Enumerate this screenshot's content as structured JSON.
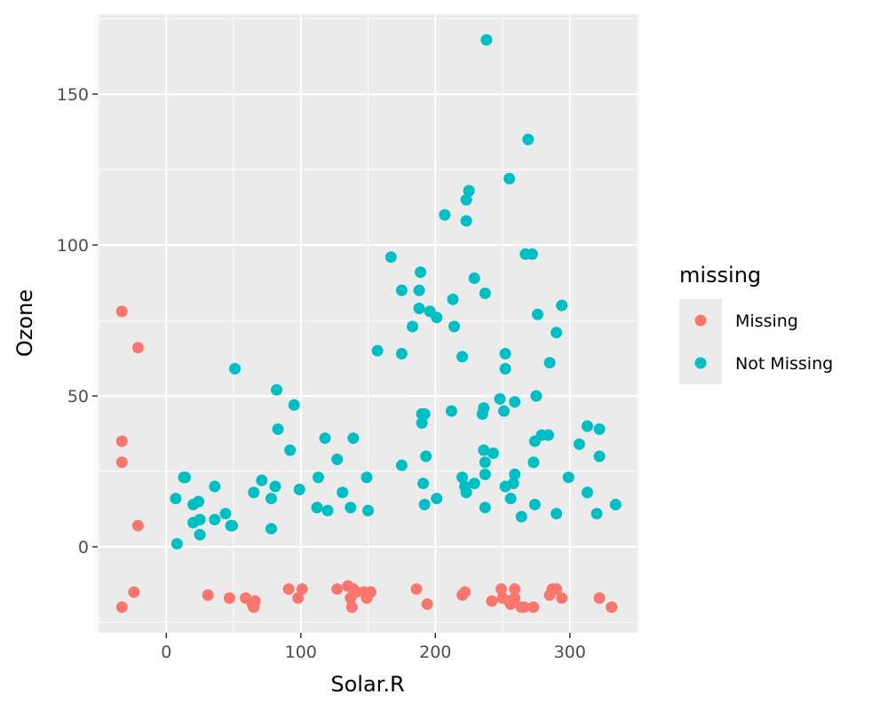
{
  "chart_data": {
    "type": "scatter",
    "title": "",
    "xlabel": "Solar.R",
    "ylabel": "Ozone",
    "xlim": [
      -51,
      351
    ],
    "ylim": [
      -28.5,
      176.5
    ],
    "x_ticks": [
      0,
      100,
      200,
      300
    ],
    "y_ticks": [
      0,
      50,
      100,
      150
    ],
    "x_tick_labels": [
      "0",
      "100",
      "200",
      "300"
    ],
    "y_tick_labels": [
      "0",
      "50",
      "100",
      "150"
    ],
    "grid": true,
    "legend": {
      "title": "missing",
      "position": "right"
    },
    "series": [
      {
        "name": "Missing",
        "color": "#F8766D",
        "points": [
          [
            -33,
            78
          ],
          [
            -21,
            66
          ],
          [
            -33,
            35
          ],
          [
            -33,
            28
          ],
          [
            -21,
            7
          ],
          [
            -24,
            -15
          ],
          [
            -33,
            -20
          ],
          [
            31,
            -16
          ],
          [
            47,
            -17
          ],
          [
            59,
            -17
          ],
          [
            64,
            -19
          ],
          [
            65,
            -20
          ],
          [
            66,
            -18
          ],
          [
            91,
            -14
          ],
          [
            98,
            -17
          ],
          [
            101,
            -14
          ],
          [
            127,
            -14
          ],
          [
            135,
            -13
          ],
          [
            137,
            -17
          ],
          [
            138,
            -20
          ],
          [
            139,
            -14
          ],
          [
            141,
            -15
          ],
          [
            147,
            -15
          ],
          [
            149,
            -17
          ],
          [
            152,
            -15
          ],
          [
            186,
            -14
          ],
          [
            194,
            -19
          ],
          [
            220,
            -16
          ],
          [
            222,
            -15
          ],
          [
            242,
            -18
          ],
          [
            249,
            -14
          ],
          [
            250,
            -17
          ],
          [
            255,
            -18
          ],
          [
            256,
            -19
          ],
          [
            259,
            -14
          ],
          [
            259,
            -17
          ],
          [
            264,
            -20
          ],
          [
            266,
            -20
          ],
          [
            273,
            -20
          ],
          [
            285,
            -16
          ],
          [
            287,
            -14
          ],
          [
            290,
            -14
          ],
          [
            294,
            -17
          ],
          [
            322,
            -17
          ],
          [
            331,
            -20
          ]
        ]
      },
      {
        "name": "Not Missing",
        "color": "#00BFC4",
        "points": [
          [
            238,
            168
          ],
          [
            269,
            135
          ],
          [
            255,
            122
          ],
          [
            225,
            118
          ],
          [
            223,
            115
          ],
          [
            207,
            110
          ],
          [
            223,
            108
          ],
          [
            167,
            96
          ],
          [
            267,
            97
          ],
          [
            272,
            97
          ],
          [
            189,
            91
          ],
          [
            175,
            85
          ],
          [
            188,
            85
          ],
          [
            237,
            84
          ],
          [
            229,
            89
          ],
          [
            213,
            82
          ],
          [
            294,
            80
          ],
          [
            188,
            79
          ],
          [
            196,
            78
          ],
          [
            201,
            76
          ],
          [
            276,
            77
          ],
          [
            183,
            73
          ],
          [
            214,
            73
          ],
          [
            290,
            71
          ],
          [
            157,
            65
          ],
          [
            175,
            64
          ],
          [
            252,
            64
          ],
          [
            220,
            63
          ],
          [
            285,
            61
          ],
          [
            252,
            59
          ],
          [
            51,
            59
          ],
          [
            82,
            52
          ],
          [
            275,
            50
          ],
          [
            248,
            49
          ],
          [
            95,
            47
          ],
          [
            259,
            48
          ],
          [
            236,
            46
          ],
          [
            235,
            44
          ],
          [
            190,
            44
          ],
          [
            192,
            44
          ],
          [
            212,
            45
          ],
          [
            251,
            45
          ],
          [
            190,
            41
          ],
          [
            313,
            40
          ],
          [
            83,
            39
          ],
          [
            322,
            39
          ],
          [
            279,
            37
          ],
          [
            284,
            37
          ],
          [
            118,
            36
          ],
          [
            139,
            36
          ],
          [
            274,
            35
          ],
          [
            307,
            34
          ],
          [
            92,
            32
          ],
          [
            236,
            32
          ],
          [
            243,
            31
          ],
          [
            193,
            30
          ],
          [
            322,
            30
          ],
          [
            127,
            29
          ],
          [
            237,
            28
          ],
          [
            273,
            28
          ],
          [
            175,
            27
          ],
          [
            259,
            24
          ],
          [
            237,
            24
          ],
          [
            13,
            23
          ],
          [
            14,
            23
          ],
          [
            113,
            23
          ],
          [
            149,
            23
          ],
          [
            220,
            23
          ],
          [
            299,
            23
          ],
          [
            71,
            22
          ],
          [
            191,
            21
          ],
          [
            229,
            21
          ],
          [
            258,
            21
          ],
          [
            36,
            20
          ],
          [
            81,
            20
          ],
          [
            252,
            20
          ],
          [
            222,
            20
          ],
          [
            99,
            19
          ],
          [
            65,
            18
          ],
          [
            131,
            18
          ],
          [
            223,
            18
          ],
          [
            313,
            18
          ],
          [
            78,
            16
          ],
          [
            7,
            16
          ],
          [
            201,
            16
          ],
          [
            256,
            16
          ],
          [
            24,
            15
          ],
          [
            20,
            14
          ],
          [
            192,
            14
          ],
          [
            274,
            14
          ],
          [
            334,
            14
          ],
          [
            112,
            13
          ],
          [
            137,
            13
          ],
          [
            237,
            13
          ],
          [
            120,
            12
          ],
          [
            150,
            12
          ],
          [
            44,
            11
          ],
          [
            290,
            11
          ],
          [
            320,
            11
          ],
          [
            264,
            10
          ],
          [
            25,
            9
          ],
          [
            36,
            9
          ],
          [
            20,
            8
          ],
          [
            49,
            7
          ],
          [
            48,
            7
          ],
          [
            78,
            6
          ],
          [
            25,
            4
          ],
          [
            8,
            1
          ]
        ]
      }
    ]
  }
}
